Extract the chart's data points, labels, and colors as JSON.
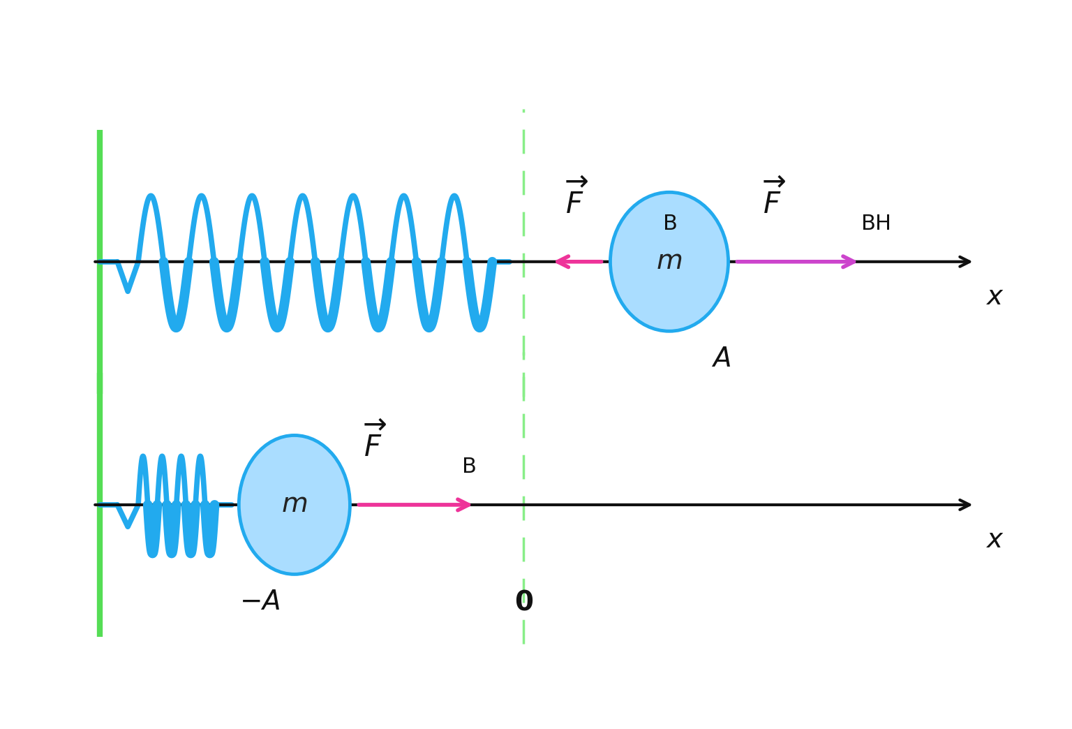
{
  "bg_color": "#ffffff",
  "wall_color": "#55dd55",
  "spring_color": "#22aaee",
  "axis_color": "#111111",
  "arrow_color_fb": "#ee3399",
  "arrow_color_fbh": "#cc44cc",
  "ball_fill": "#aaddff",
  "ball_edge": "#22aaee",
  "dashed_color": "#88ee88",
  "text_color": "#111111",
  "figsize": [
    15.36,
    10.44
  ],
  "dpi": 100
}
